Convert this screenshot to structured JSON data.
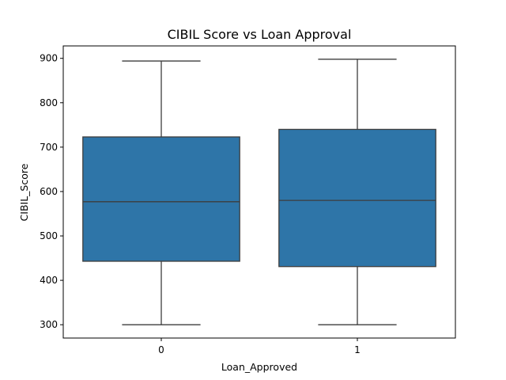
{
  "chart_data": {
    "type": "box",
    "title": "CIBIL Score vs Loan Approval",
    "xlabel": "Loan_Approved",
    "ylabel": "CIBIL_Score",
    "categories": [
      "0",
      "1"
    ],
    "ylim": [
      270,
      928
    ],
    "yticks": [
      300,
      400,
      500,
      600,
      700,
      800,
      900
    ],
    "boxes": [
      {
        "category": "0",
        "whisker_low": 300,
        "q1": 443,
        "median": 577,
        "q3": 723,
        "whisker_high": 894
      },
      {
        "category": "1",
        "whisker_low": 300,
        "q1": 431,
        "median": 580,
        "q3": 740,
        "whisker_high": 898
      }
    ],
    "box_color": "#2e75a8",
    "line_color": "#3d3d3d"
  }
}
